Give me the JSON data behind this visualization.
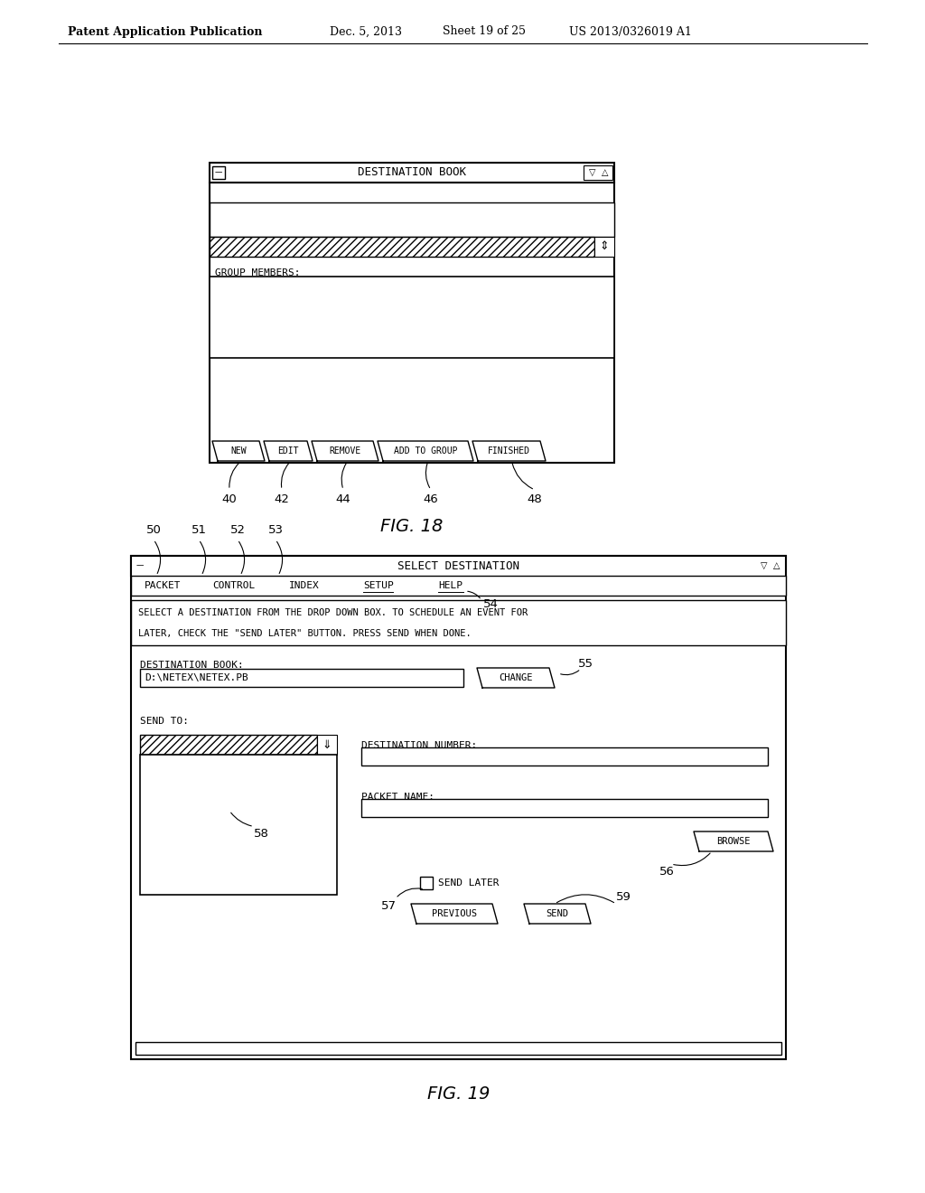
{
  "bg_color": "#ffffff",
  "header_text": "Patent Application Publication",
  "header_date": "Dec. 5, 2013",
  "header_sheet": "Sheet 19 of 25",
  "header_patent": "US 2013/0326019 A1",
  "fig18_title": "DESTINATION BOOK",
  "fig18_label": "FIG. 18",
  "fig18_buttons": [
    "NEW",
    "EDIT",
    "REMOVE",
    "ADD TO GROUP",
    "FINISHED"
  ],
  "fig18_button_labels": [
    "40",
    "42",
    "44",
    "46",
    "48"
  ],
  "fig18_group_members": "GROUP MEMBERS:",
  "fig19_title": "SELECT DESTINATION",
  "fig19_label": "FIG. 19",
  "fig19_menu_items": [
    "PACKET",
    "CONTROL",
    "INDEX",
    "SETUP",
    "HELP"
  ],
  "fig19_menu_num": "54",
  "fig19_instruction1": "SELECT A DESTINATION FROM THE DROP DOWN BOX. TO SCHEDULE AN EVENT FOR",
  "fig19_instruction2": "LATER, CHECK THE \"SEND LATER\" BUTTON. PRESS SEND WHEN DONE.",
  "fig19_dest_book_label": "DESTINATION BOOK:",
  "fig19_dest_book_value": "D:\\NETEX\\NETEX.PB",
  "fig19_change_btn": "CHANGE",
  "fig19_change_num": "55",
  "fig19_send_to": "SEND TO:",
  "fig19_dest_num_label": "DESTINATION NUMBER:",
  "fig19_packet_name_label": "PACKET NAME:",
  "fig19_browse_btn": "BROWSE",
  "fig19_browse_num": "56",
  "fig19_send_later": "SEND LATER",
  "fig19_send_later_num": "57",
  "fig19_previous_btn": "PREVIOUS",
  "fig19_send_btn": "SEND",
  "fig19_send_num": "59",
  "fig19_area_num": "58",
  "fig19_numbers": [
    "50",
    "51",
    "52",
    "53"
  ]
}
